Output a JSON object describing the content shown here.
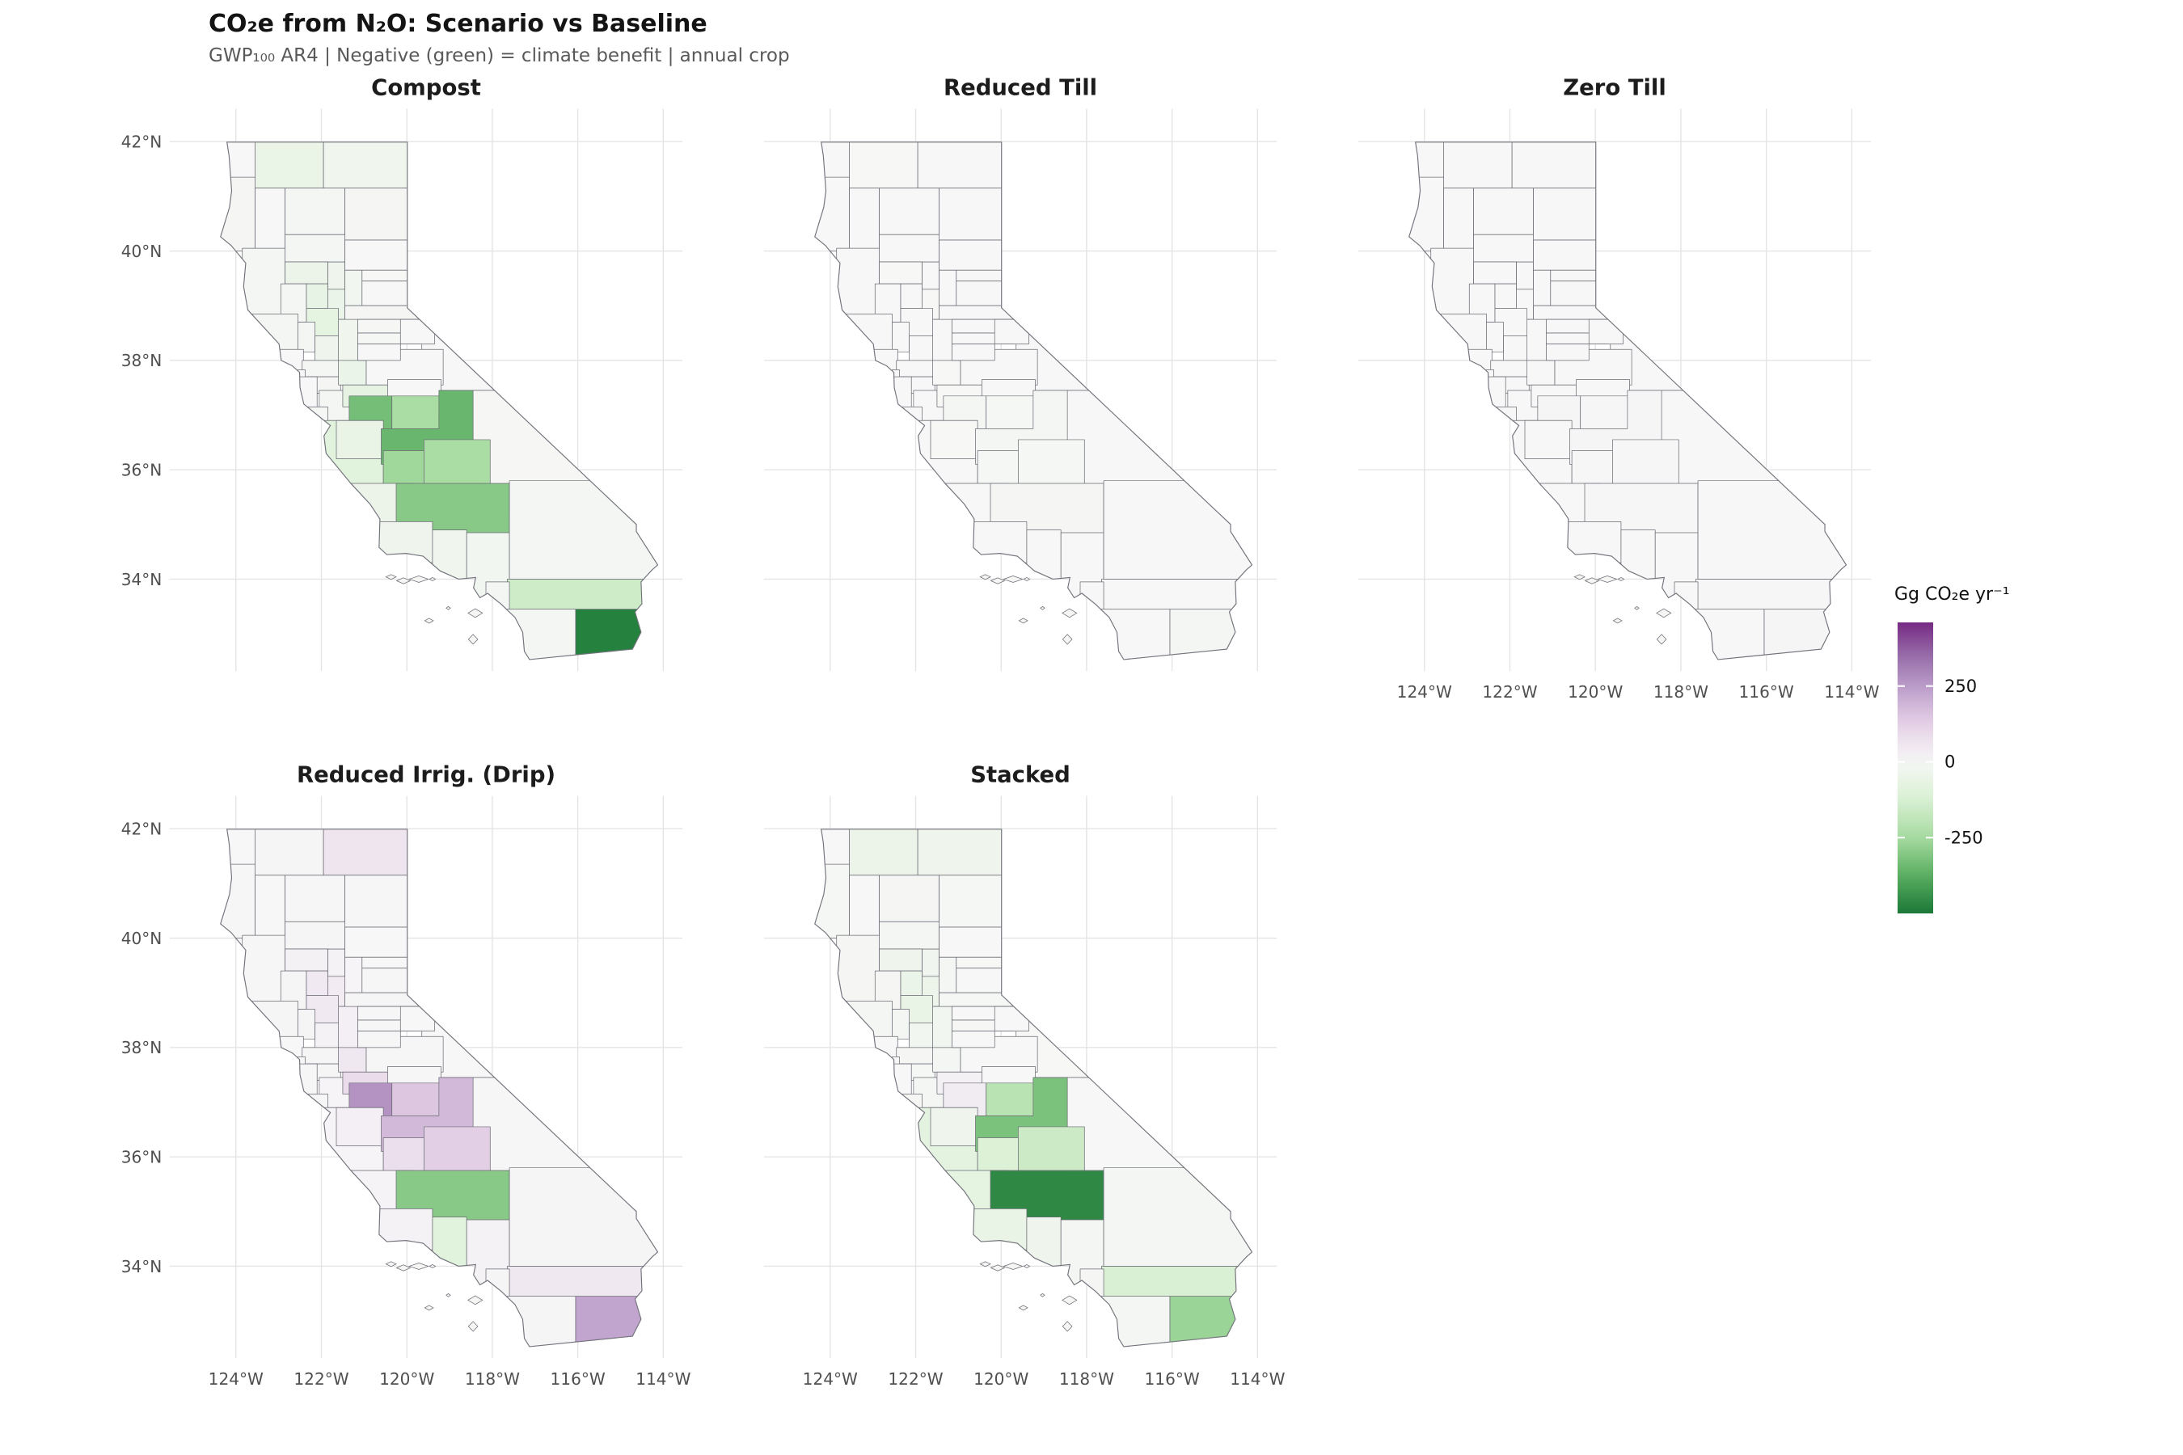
{
  "header": {
    "title": "CO₂e from N₂O: Scenario vs Baseline",
    "subtitle": "GWP₁₀₀ AR4 | Negative (green) = climate benefit | annual crop"
  },
  "panels": [
    "Compost",
    "Reduced Till",
    "Zero Till",
    "Reduced Irrig. (Drip)",
    "Stacked"
  ],
  "axes": {
    "x_ticks": [
      "124°W",
      "122°W",
      "120°W",
      "118°W",
      "116°W",
      "114°W"
    ],
    "y_ticks": [
      "42°N",
      "40°N",
      "38°N",
      "36°N",
      "34°N"
    ]
  },
  "legend": {
    "title": "Gg CO₂e yr⁻¹",
    "ticks": [
      "250",
      "0",
      "-250"
    ]
  },
  "colors": {
    "positive_max_purple": "#762a83",
    "neutral": "#f7f7f7",
    "negative_max_green": "#1b7837",
    "gridline": "#e4e4e4",
    "county_stroke": "#6b6b74",
    "subtitle_gray": "#595959"
  },
  "chart_data": {
    "type": "heatmap",
    "subtype": "choropleth-facets",
    "geography": "California counties",
    "unit": "Gg CO2e yr-1",
    "title": "CO₂e from N₂O: Scenario vs Baseline",
    "facets": [
      "Compost",
      "Reduced Till",
      "Zero Till",
      "Reduced Irrig. (Drip)",
      "Stacked"
    ],
    "color_scale": {
      "palette": "PRGn (purple = positive/source, green = negative/benefit)",
      "domain": [
        -500,
        460
      ],
      "legend_ticks": [
        250,
        0,
        -250
      ]
    },
    "axis_ranges": {
      "lon": [
        -125.5,
        -113.5
      ],
      "lat": [
        32.4,
        42.6
      ],
      "grid": true
    },
    "values": {
      "Compost": {
        "Alameda": -10,
        "Alpine": -1,
        "Amador": -8,
        "Butte": -35,
        "Calaveras": -5,
        "Colusa": -65,
        "Contra Costa": -12,
        "Del Norte": -5,
        "El Dorado": -6,
        "Fresno": -350,
        "Glenn": -45,
        "Humboldt": -10,
        "Imperial": -480,
        "Inyo": -6,
        "Kern": -300,
        "Kings": -260,
        "Lake": -12,
        "Lassen": -10,
        "Los Angeles": -20,
        "Madera": -240,
        "Marin": -4,
        "Mariposa": -5,
        "Mendocino": -12,
        "Merced": -330,
        "Modoc": -30,
        "Mono": -3,
        "Monterey": -90,
        "Napa": -16,
        "Nevada": -4,
        "Orange": -12,
        "Placer": -10,
        "Plumas": -4,
        "Riverside": -150,
        "Sacramento": -30,
        "San Benito": -60,
        "San Bernardino": -18,
        "San Diego": -15,
        "San Francisco": 0,
        "San Joaquin": -50,
        "San Luis Obispo": -45,
        "San Mateo": -5,
        "Santa Barbara": -35,
        "Santa Clara": -18,
        "Santa Cruz": -8,
        "Shasta": -12,
        "Sierra": -2,
        "Siskiyou": -55,
        "Solano": -35,
        "Sonoma": -18,
        "Stanislaus": -70,
        "Sutter": -50,
        "Tehama": -15,
        "Trinity": -4,
        "Tulare": -240,
        "Tuolumne": -4,
        "Ventura": -30,
        "Yolo": -75,
        "Yuba": -20
      },
      "Reduced Till": {
        "Alameda": 0,
        "Alpine": 0,
        "Amador": 0,
        "Butte": -1,
        "Calaveras": 0,
        "Colusa": -3,
        "Contra Costa": 0,
        "Del Norte": 0,
        "El Dorado": 0,
        "Fresno": -12,
        "Glenn": -2,
        "Humboldt": 0,
        "Imperial": -15,
        "Inyo": 0,
        "Kern": -10,
        "Kings": -8,
        "Lake": 0,
        "Lassen": 0,
        "Los Angeles": -1,
        "Madera": -8,
        "Marin": 0,
        "Mariposa": 0,
        "Mendocino": 0,
        "Merced": -11,
        "Modoc": -1,
        "Mono": 0,
        "Monterey": -3,
        "Napa": -1,
        "Nevada": 0,
        "Orange": 0,
        "Placer": 0,
        "Plumas": 0,
        "Riverside": -5,
        "Sacramento": -1,
        "San Benito": -2,
        "San Bernardino": -1,
        "San Diego": -1,
        "San Francisco": 0,
        "San Joaquin": -2,
        "San Luis Obispo": -1,
        "San Mateo": 0,
        "Santa Barbara": -1,
        "Santa Clara": -1,
        "Santa Cruz": 0,
        "Shasta": -1,
        "Sierra": 0,
        "Siskiyou": -2,
        "Solano": -1,
        "Sonoma": -1,
        "Stanislaus": -2,
        "Sutter": -2,
        "Tehama": -1,
        "Trinity": 0,
        "Tulare": -8,
        "Tuolumne": 0,
        "Ventura": -1,
        "Yolo": -3,
        "Yuba": -1
      },
      "Zero Till": {
        "Alameda": 0,
        "Alpine": 0,
        "Amador": 0,
        "Butte": 1,
        "Calaveras": 0,
        "Colusa": 1,
        "Contra Costa": 0,
        "Del Norte": 0,
        "El Dorado": 0,
        "Fresno": 5,
        "Glenn": 1,
        "Humboldt": 0,
        "Imperial": 6,
        "Inyo": 0,
        "Kern": 4,
        "Kings": 3,
        "Lake": 0,
        "Lassen": 0,
        "Los Angeles": 0,
        "Madera": 3,
        "Marin": 0,
        "Mariposa": 0,
        "Mendocino": 0,
        "Merced": 5,
        "Modoc": 1,
        "Mono": 0,
        "Monterey": 1,
        "Napa": 0,
        "Nevada": 0,
        "Orange": 0,
        "Placer": 0,
        "Plumas": 0,
        "Riverside": 2,
        "Sacramento": 1,
        "San Benito": 1,
        "San Bernardino": 0,
        "San Diego": 0,
        "San Francisco": 0,
        "San Joaquin": 1,
        "San Luis Obispo": 0,
        "San Mateo": 0,
        "Santa Barbara": 0,
        "Santa Clara": 0,
        "Santa Cruz": 0,
        "Shasta": 0,
        "Sierra": 0,
        "Siskiyou": 1,
        "Solano": 1,
        "Sonoma": 0,
        "Stanislaus": 1,
        "Sutter": 1,
        "Tehama": 0,
        "Trinity": 0,
        "Tulare": 3,
        "Tuolumne": 0,
        "Ventura": 0,
        "Yolo": 1,
        "Yuba": 0
      },
      "Reduced Irrig. (Drip)": {
        "Alameda": 5,
        "Alpine": 0,
        "Amador": 4,
        "Butte": 15,
        "Calaveras": 3,
        "Colusa": 45,
        "Contra Costa": 6,
        "Del Norte": 1,
        "El Dorado": 3,
        "Fresno": 180,
        "Glenn": 20,
        "Humboldt": 2,
        "Imperial": 230,
        "Inyo": 3,
        "Kern": -300,
        "Kings": 80,
        "Lake": 5,
        "Lassen": 3,
        "Los Angeles": 15,
        "Madera": 150,
        "Marin": 1,
        "Mariposa": 3,
        "Mendocino": 4,
        "Merced": 270,
        "Modoc": 60,
        "Mono": 1,
        "Monterey": 10,
        "Napa": 8,
        "Nevada": 2,
        "Orange": 5,
        "Placer": 5,
        "Plumas": 1,
        "Riverside": 50,
        "Sacramento": 25,
        "San Benito": 25,
        "San Bernardino": 8,
        "San Diego": 5,
        "San Francisco": 0,
        "San Joaquin": 50,
        "San Luis Obispo": 12,
        "San Mateo": 2,
        "Santa Barbara": 15,
        "Santa Clara": 10,
        "Santa Cruz": 4,
        "Shasta": 4,
        "Sierra": 1,
        "Siskiyou": 6,
        "Solano": 15,
        "Sonoma": 5,
        "Stanislaus": 90,
        "Sutter": 35,
        "Tehama": 6,
        "Trinity": 1,
        "Tulare": 130,
        "Tuolumne": 2,
        "Ventura": -90,
        "Yolo": 45,
        "Yuba": 10
      },
      "Stacked": {
        "Alameda": -8,
        "Alpine": -1,
        "Amador": -6,
        "Butte": -28,
        "Calaveras": -4,
        "Colusa": -50,
        "Contra Costa": -10,
        "Del Norte": -4,
        "El Dorado": -5,
        "Fresno": -320,
        "Glenn": -35,
        "Humboldt": -8,
        "Imperial": -270,
        "Inyo": -5,
        "Kern": -460,
        "Kings": -110,
        "Lake": -10,
        "Lassen": -8,
        "Los Angeles": -18,
        "Madera": -200,
        "Marin": -3,
        "Mariposa": -4,
        "Mendocino": -10,
        "Merced": 40,
        "Modoc": -35,
        "Mono": -2,
        "Monterey": -80,
        "Napa": -12,
        "Nevada": -3,
        "Orange": -10,
        "Placer": -8,
        "Plumas": -3,
        "Riverside": -120,
        "Sacramento": -22,
        "San Benito": -35,
        "San Bernardino": -15,
        "San Diego": -12,
        "San Francisco": 0,
        "San Joaquin": -18,
        "San Luis Obispo": -75,
        "San Mateo": -4,
        "Santa Barbara": -60,
        "Santa Clara": -14,
        "Santa Cruz": -6,
        "Shasta": -10,
        "Sierra": -2,
        "Siskiyou": -45,
        "Solano": -26,
        "Sonoma": -14,
        "Stanislaus": 20,
        "Sutter": -40,
        "Tehama": -12,
        "Trinity": -3,
        "Tulare": -160,
        "Tuolumne": -3,
        "Ventura": -35,
        "Yolo": -60,
        "Yuba": -15
      }
    }
  }
}
